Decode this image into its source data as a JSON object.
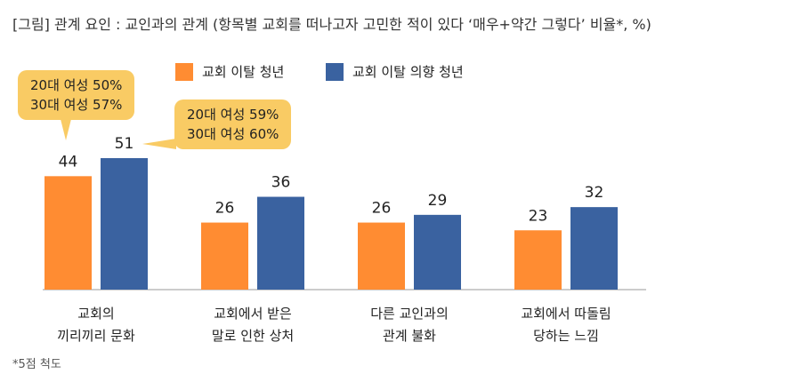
{
  "title": "[그림] 관계 요인 : 교인과의 관계 (항목별 교회를 떠나고자 고민한 적이 있다 ‘매우+약간 그렇다’ 비율*, %)",
  "footnote": "*5점 척도",
  "callouts": [
    {
      "line1": "20대 여성 50%",
      "line2": "30대 여성 57%"
    },
    {
      "line1": "20대 여성 59%",
      "line2": "30대 여성 60%"
    }
  ],
  "colors": {
    "orange": "#ff8c32",
    "blue": "#3a62a0",
    "callout": "#f9cb64"
  },
  "chart_data": {
    "type": "bar",
    "categories": [
      [
        "교회의",
        "끼리끼리 문화"
      ],
      [
        "교회에서 받은",
        "말로 인한 상처"
      ],
      [
        "다른 교인과의",
        "관계 불화"
      ],
      [
        "교회에서 따돌림",
        "당하는 느낌"
      ]
    ],
    "series": [
      {
        "name": "교회 이탈 청년",
        "color": "#ff8c32",
        "values": [
          44,
          26,
          26,
          23
        ]
      },
      {
        "name": "교회 이탈 의향 청년",
        "color": "#3a62a0",
        "values": [
          51,
          36,
          29,
          32
        ]
      }
    ],
    "ylim": [
      0,
      51
    ],
    "legend_position": "top"
  }
}
